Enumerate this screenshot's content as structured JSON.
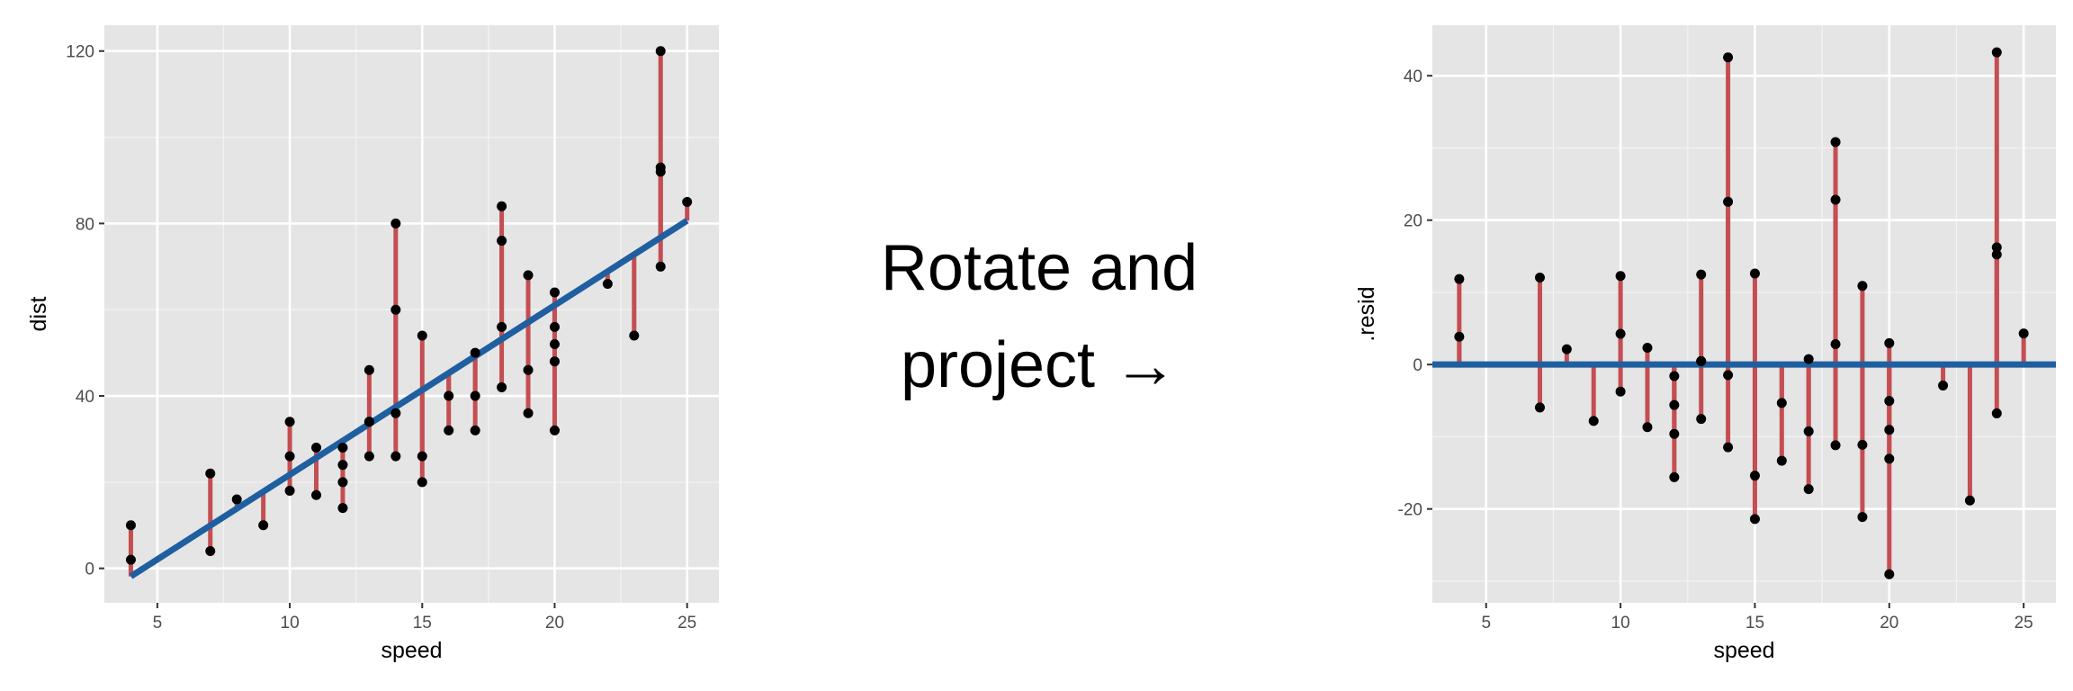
{
  "colors": {
    "panel_bg": "#e5e5e5",
    "grid_major": "#ffffff",
    "grid_minor": "#f2f2f2",
    "fit_line": "#1f5fa0",
    "residual_segment": "#c44e52",
    "point": "#000000"
  },
  "annotation": {
    "line1": "Rotate and",
    "line2": "project →"
  },
  "chart_data": [
    {
      "type": "scatter",
      "title": "",
      "xlabel": "speed",
      "ylabel": "dist",
      "xlim": [
        3,
        26.2
      ],
      "ylim": [
        -8,
        126
      ],
      "xticks": [
        5,
        10,
        15,
        20,
        25
      ],
      "yticks": [
        0,
        40,
        80,
        120
      ],
      "grid": true,
      "legend": "none",
      "fit_line": {
        "intercept": -17.58,
        "slope": 3.93
      },
      "points": {
        "speed": [
          4,
          4,
          7,
          7,
          8,
          9,
          10,
          10,
          10,
          11,
          11,
          12,
          12,
          12,
          12,
          13,
          13,
          13,
          13,
          14,
          14,
          14,
          14,
          15,
          15,
          15,
          16,
          16,
          17,
          17,
          17,
          18,
          18,
          18,
          18,
          19,
          19,
          19,
          20,
          20,
          20,
          20,
          20,
          22,
          23,
          24,
          24,
          24,
          24,
          25
        ],
        "dist": [
          2,
          10,
          4,
          22,
          16,
          10,
          18,
          26,
          34,
          17,
          28,
          14,
          20,
          24,
          28,
          26,
          34,
          34,
          46,
          26,
          36,
          60,
          80,
          20,
          26,
          54,
          32,
          40,
          32,
          40,
          50,
          42,
          56,
          76,
          84,
          36,
          46,
          68,
          32,
          48,
          52,
          56,
          64,
          66,
          54,
          70,
          92,
          93,
          120,
          85
        ]
      }
    },
    {
      "type": "scatter",
      "title": "",
      "xlabel": "speed",
      "ylabel": ".resid",
      "xlim": [
        3,
        26.2
      ],
      "ylim": [
        -33,
        47
      ],
      "xticks": [
        5,
        10,
        15,
        20,
        25
      ],
      "yticks": [
        -20,
        0,
        20,
        40
      ],
      "grid": true,
      "legend": "none",
      "reference_line": 0,
      "points": {
        "speed": [
          4,
          4,
          7,
          7,
          8,
          9,
          10,
          10,
          10,
          11,
          11,
          12,
          12,
          12,
          12,
          13,
          13,
          13,
          13,
          14,
          14,
          14,
          14,
          15,
          15,
          15,
          16,
          16,
          17,
          17,
          17,
          18,
          18,
          18,
          18,
          19,
          19,
          19,
          20,
          20,
          20,
          20,
          20,
          22,
          23,
          24,
          24,
          24,
          24,
          25
        ],
        "resid": [
          3.85,
          11.85,
          -5.95,
          12.05,
          2.12,
          -7.81,
          -3.74,
          4.26,
          12.26,
          -8.67,
          2.33,
          -15.6,
          -9.6,
          -5.6,
          -1.6,
          -7.53,
          0.47,
          0.47,
          12.47,
          -11.46,
          -1.46,
          22.54,
          42.54,
          -21.39,
          -15.39,
          12.61,
          -13.32,
          -5.32,
          -17.25,
          -9.25,
          0.75,
          -11.18,
          2.82,
          22.82,
          30.82,
          -21.11,
          -11.11,
          10.89,
          -29.04,
          -13.04,
          -9.04,
          -5.04,
          2.96,
          -2.9,
          -18.83,
          -6.76,
          15.24,
          16.24,
          43.24,
          4.31
        ]
      }
    }
  ]
}
